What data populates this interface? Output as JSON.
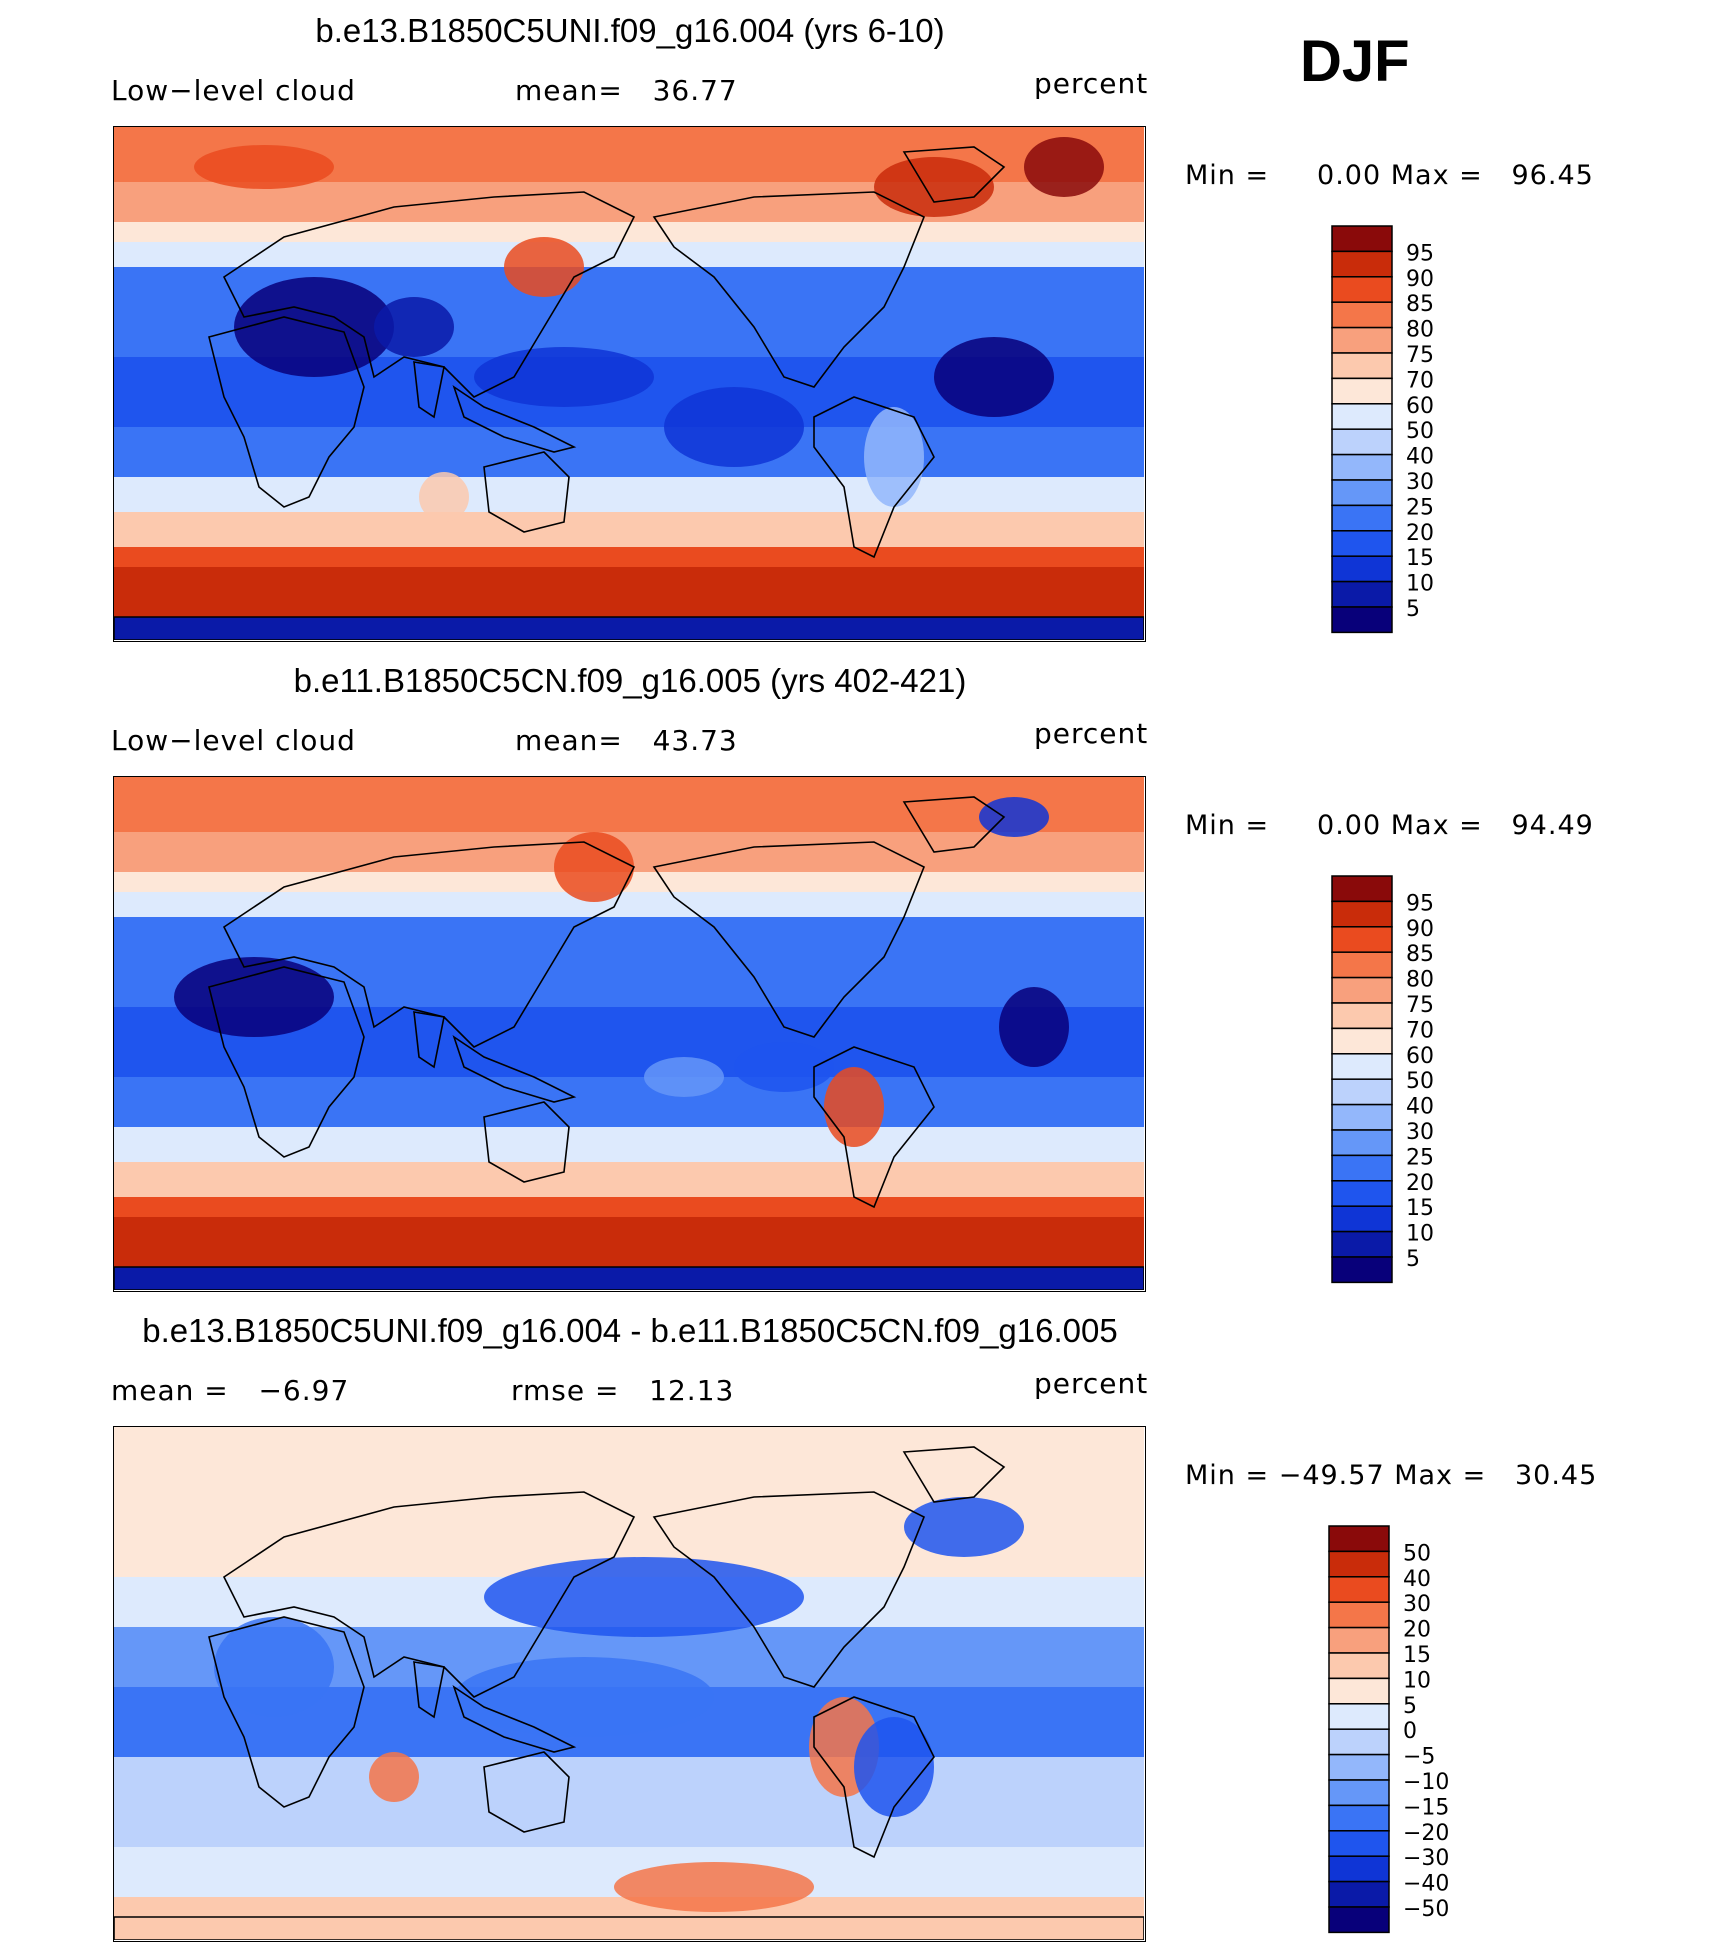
{
  "season": "DJF",
  "colors": [
    "#08007a",
    "#0a1aa8",
    "#0f35d6",
    "#1f55ee",
    "#3a74f5",
    "#6597f8",
    "#93b7fb",
    "#bcd2fc",
    "#ddeafd",
    "#fde7d8",
    "#fcc9ae",
    "#f8a07d",
    "#f47649",
    "#ea4b1f",
    "#c92c0a",
    "#8a0a0a"
  ],
  "chart_data": [
    {
      "type": "heatmap",
      "title": "b.e13.B1850C5UNI.f09_g16.004 (yrs 6-10)",
      "variable": "Low−level cloud",
      "stat1": "mean=   36.77",
      "units": "percent",
      "minmax": "Min =     0.00 Max =   96.45",
      "colorbar_labels": [
        "95",
        "90",
        "85",
        "80",
        "75",
        "70",
        "60",
        "50",
        "40",
        "30",
        "25",
        "20",
        "15",
        "10",
        "5"
      ],
      "min": 0.0,
      "max": 96.45
    },
    {
      "type": "heatmap",
      "title": "b.e11.B1850C5CN.f09_g16.005 (yrs 402-421)",
      "variable": "Low−level cloud",
      "stat1": "mean=   43.73",
      "units": "percent",
      "minmax": "Min =     0.00 Max =   94.49",
      "colorbar_labels": [
        "95",
        "90",
        "85",
        "80",
        "75",
        "70",
        "60",
        "50",
        "40",
        "30",
        "25",
        "20",
        "15",
        "10",
        "5"
      ],
      "min": 0.0,
      "max": 94.49
    },
    {
      "type": "heatmap",
      "title": "b.e13.B1850C5UNI.f09_g16.004 - b.e11.B1850C5CN.f09_g16.005",
      "variable": "mean =   −6.97",
      "stat1": "rmse =   12.13",
      "units": "percent",
      "minmax": "Min = −49.57 Max =   30.45",
      "colorbar_labels": [
        "50",
        "40",
        "30",
        "20",
        "15",
        "10",
        "5",
        "0",
        "−5",
        "−10",
        "−15",
        "−20",
        "−30",
        "−40",
        "−50"
      ],
      "min": -49.57,
      "max": 30.45
    }
  ]
}
